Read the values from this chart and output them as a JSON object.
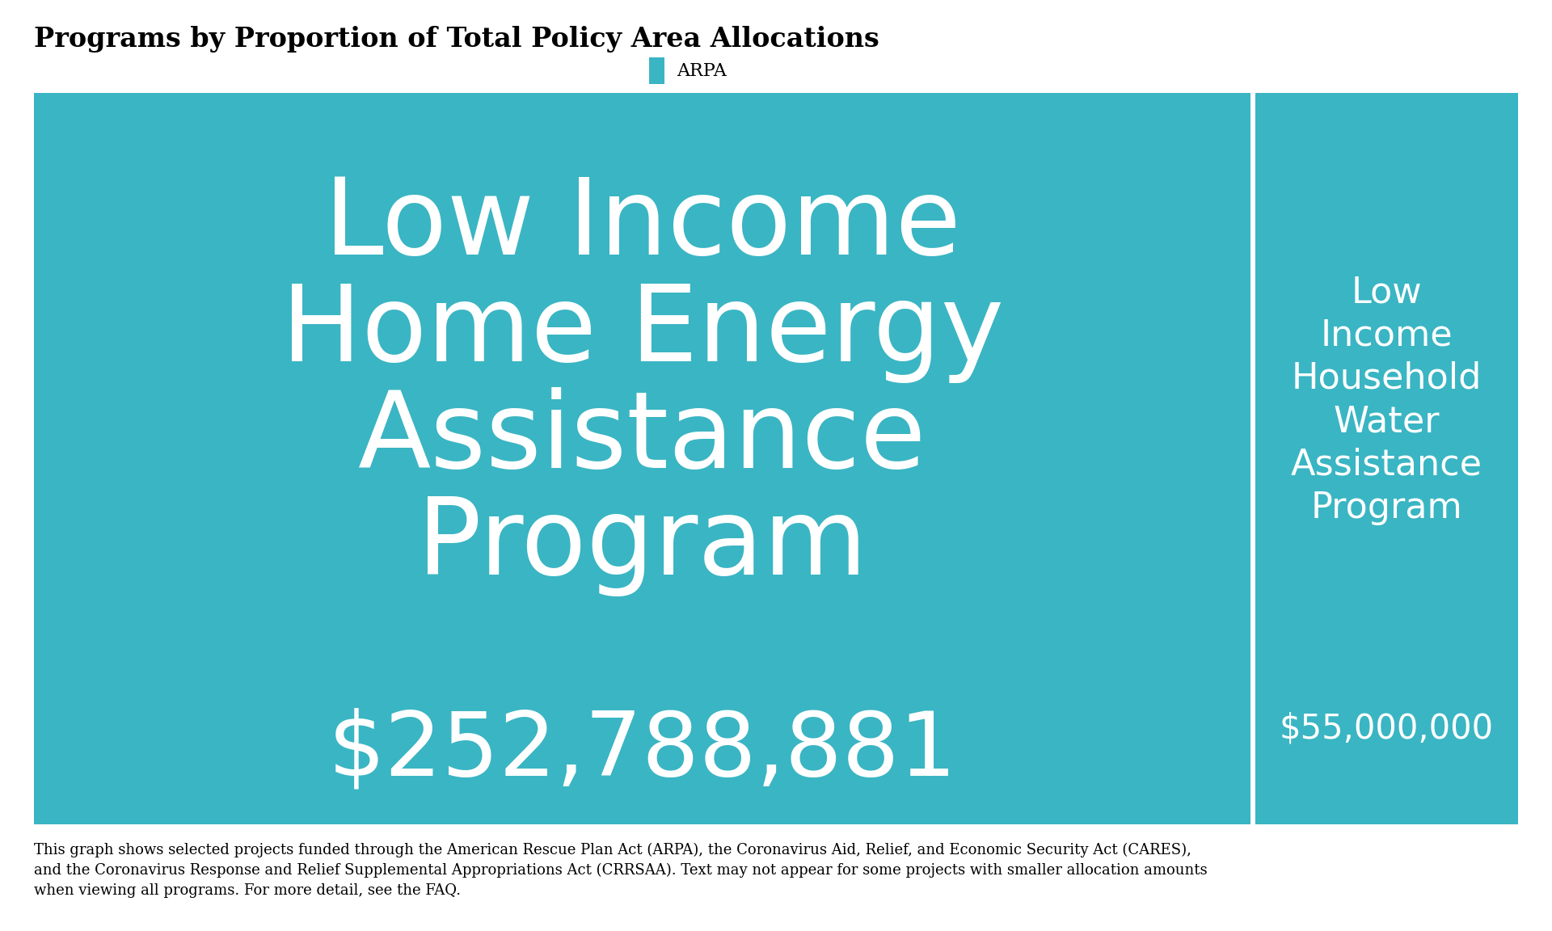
{
  "title": "Programs by Proportion of Total Policy Area Allocations",
  "legend_label": "ARPA",
  "legend_color": "#3ab5c3",
  "programs": [
    {
      "name": "Low Income\nHome Energy\nAssistance\nProgram",
      "amount": 252788881,
      "amount_label": "$252,788,881",
      "color": "#3ab5c3"
    },
    {
      "name": "Low\nIncome\nHousehold\nWater\nAssistance\nProgram",
      "amount": 55000000,
      "amount_label": "$55,000,000",
      "color": "#3ab5c3"
    }
  ],
  "footnote": "This graph shows selected projects funded through the American Rescue Plan Act (ARPA), the Coronavirus Aid, Relief, and Economic Security Act (CARES),\nand the Coronavirus Response and Relief Supplemental Appropriations Act (CRRSAA). Text may not appear for some projects with smaller allocation amounts\nwhen viewing all programs. For more detail, see the FAQ.",
  "title_fontsize": 24,
  "legend_fontsize": 16,
  "footnote_fontsize": 13,
  "bg_color": "#ffffff",
  "large_name_fontsize": 95,
  "large_amount_fontsize": 80,
  "small_name_fontsize": 32,
  "small_amount_fontsize": 30
}
